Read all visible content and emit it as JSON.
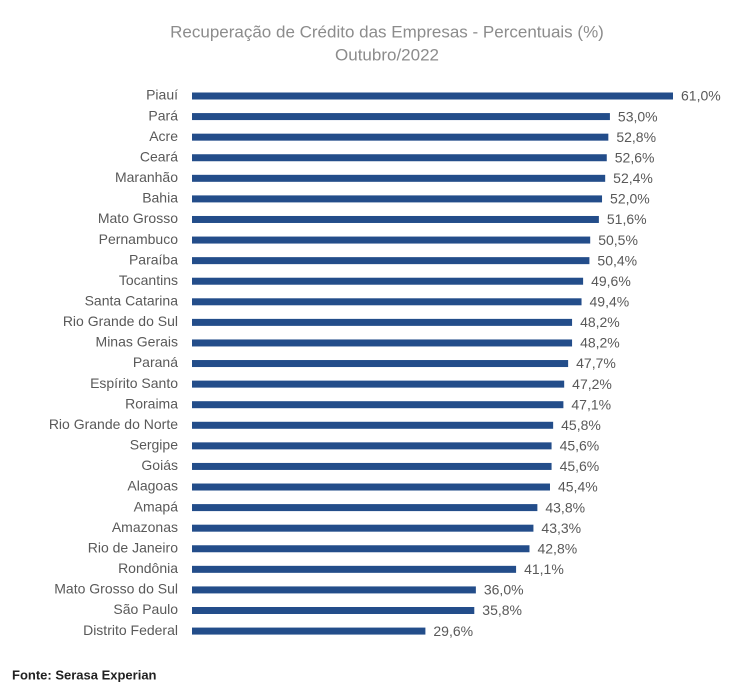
{
  "chart_data": {
    "type": "bar",
    "orientation": "horizontal",
    "title": "Recuperação de Crédito das Empresas - Percentuais (%)",
    "subtitle": "Outubro/2022",
    "categories": [
      "Piauí",
      "Pará",
      "Acre",
      "Ceará",
      "Maranhão",
      "Bahia",
      "Mato Grosso",
      "Pernambuco",
      "Paraíba",
      "Tocantins",
      "Santa Catarina",
      "Rio Grande do Sul",
      "Minas Gerais",
      "Paraná",
      "Espírito Santo",
      "Roraima",
      "Rio Grande do Norte",
      "Sergipe",
      "Goiás",
      "Alagoas",
      "Amapá",
      "Amazonas",
      "Rio de Janeiro",
      "Rondônia",
      "Mato Grosso do Sul",
      "São Paulo",
      "Distrito Federal"
    ],
    "values": [
      61.0,
      53.0,
      52.8,
      52.6,
      52.4,
      52.0,
      51.6,
      50.5,
      50.4,
      49.6,
      49.4,
      48.2,
      48.2,
      47.7,
      47.2,
      47.1,
      45.8,
      45.6,
      45.6,
      45.4,
      43.8,
      43.3,
      42.8,
      41.1,
      36.0,
      35.8,
      29.6
    ],
    "value_labels": [
      "61,0%",
      "53,0%",
      "52,8%",
      "52,6%",
      "52,4%",
      "52,0%",
      "51,6%",
      "50,5%",
      "50,4%",
      "49,6%",
      "49,4%",
      "48,2%",
      "48,2%",
      "47,7%",
      "47,2%",
      "47,1%",
      "45,8%",
      "45,6%",
      "45,6%",
      "45,4%",
      "43,8%",
      "43,3%",
      "42,8%",
      "41,1%",
      "36,0%",
      "35,8%",
      "29,6%"
    ],
    "color": "#234d8a",
    "source": "Fonte: Serasa Experian"
  }
}
